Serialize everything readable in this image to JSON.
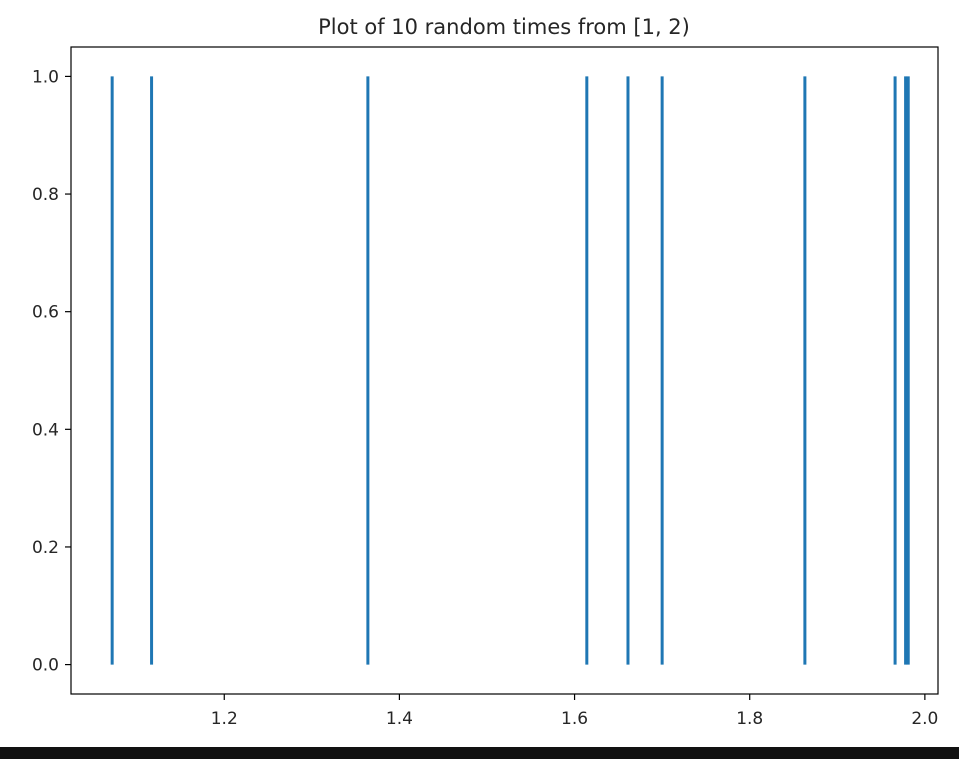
{
  "chart_data": {
    "type": "vlines",
    "title": "Plot of 10 random times from [1, 2)",
    "xlabel": "",
    "ylabel": "",
    "xlim": [
      1.025,
      2.015
    ],
    "ylim": [
      -0.05,
      1.05
    ],
    "xticks": [
      1.2,
      1.4,
      1.6,
      1.8,
      2.0
    ],
    "xtick_labels": [
      "1.2",
      "1.4",
      "1.6",
      "1.8",
      "2.0"
    ],
    "yticks": [
      0.0,
      0.2,
      0.4,
      0.6,
      0.8,
      1.0
    ],
    "ytick_labels": [
      "0.0",
      "0.2",
      "0.4",
      "0.6",
      "0.8",
      "1.0"
    ],
    "series": [
      {
        "x": [
          1.072,
          1.117,
          1.364,
          1.614,
          1.661,
          1.7,
          1.863,
          1.966,
          1.978,
          1.981
        ],
        "ymin": 0.0,
        "ymax": 1.0,
        "color": "#1f77b4"
      }
    ],
    "grid": false
  }
}
